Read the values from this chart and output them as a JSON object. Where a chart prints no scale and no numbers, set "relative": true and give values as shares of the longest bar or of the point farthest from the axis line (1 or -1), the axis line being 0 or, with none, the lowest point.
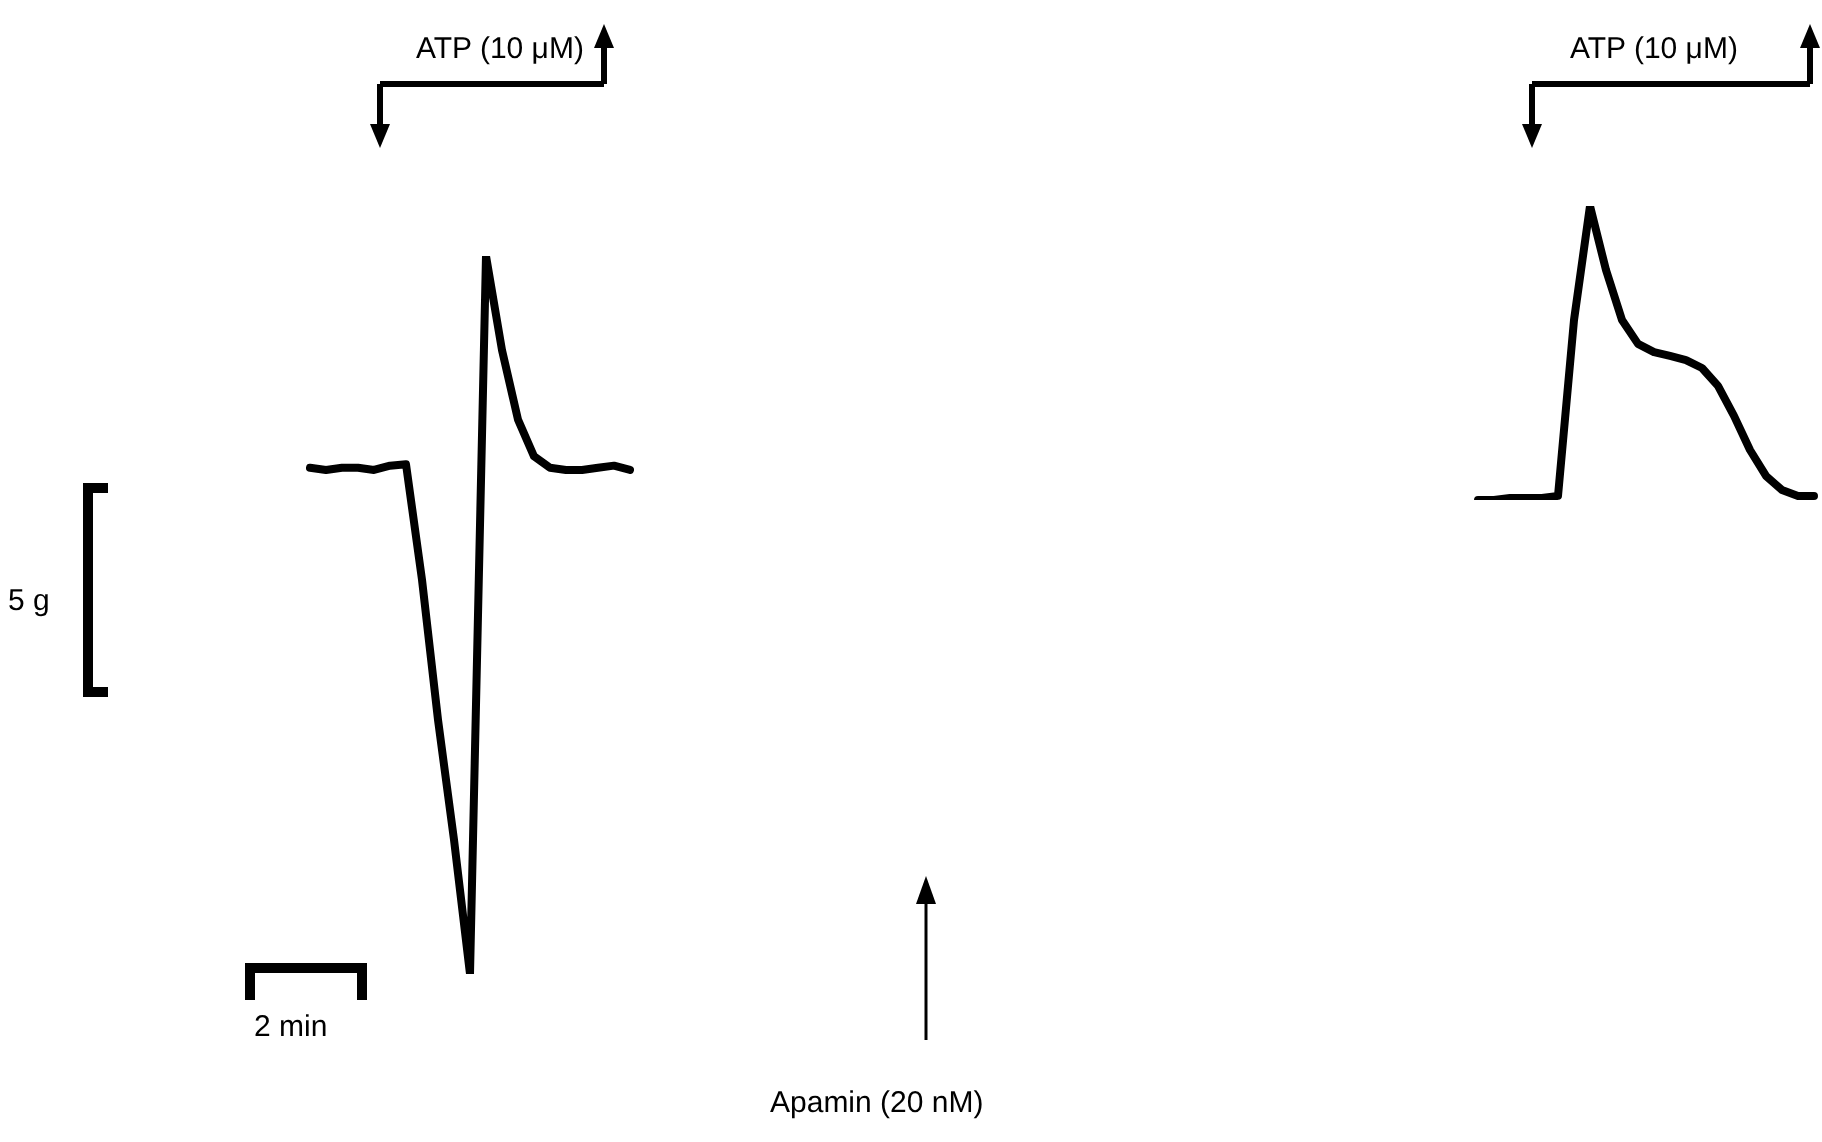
{
  "chart_data": [
    {
      "type": "line",
      "relative": true,
      "legend": false,
      "grid": false,
      "marker": "none",
      "line_style": "solid",
      "categories": [
        null,
        null,
        null,
        null,
        null,
        null,
        null,
        null,
        null,
        null,
        null,
        null,
        null,
        null,
        null,
        null,
        null,
        null,
        null,
        null,
        null
      ],
      "series": [
        {
          "color": "#000000",
          "values": [
            0.705,
            0.702,
            0.705,
            0.705,
            0.702,
            0.708,
            0.71,
            0.549,
            0.354,
            0.187,
            0,
            1,
            0.869,
            0.772,
            0.721,
            0.705,
            0.702,
            0.702,
            0.705,
            0.708,
            0.702
          ]
        }
      ],
      "annotations": [
        "ATP (10 μM)",
        "5 g",
        "2 min",
        "Apamin (20 nM)"
      ]
    },
    {
      "type": "line",
      "relative": true,
      "legend": false,
      "grid": false,
      "marker": "none",
      "line_style": "solid",
      "categories": [
        null,
        null,
        null,
        null,
        null,
        null,
        null,
        null,
        null,
        null,
        null,
        null,
        null,
        null,
        null,
        null,
        null,
        null,
        null,
        null,
        null,
        null
      ],
      "series": [
        {
          "color": "#000000",
          "values": [
            0,
            0,
            0.007,
            0.007,
            0.007,
            0.014,
            0.612,
            1,
            0.782,
            0.612,
            0.531,
            0.503,
            0.49,
            0.476,
            0.449,
            0.388,
            0.286,
            0.17,
            0.082,
            0.034,
            0.014,
            0.014
          ]
        }
      ],
      "annotations": [
        "ATP (10 μM)"
      ]
    }
  ]
}
